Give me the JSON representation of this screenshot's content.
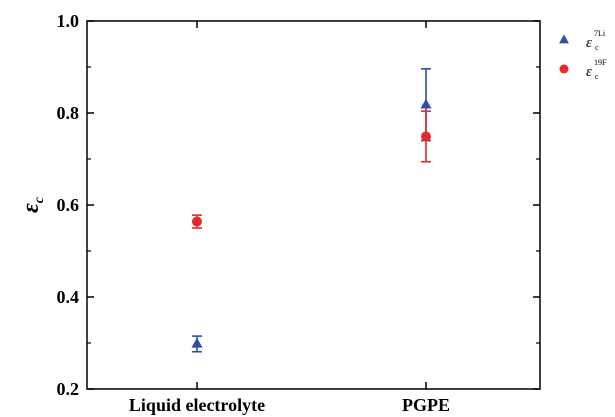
{
  "chart_data": {
    "type": "scatter",
    "categories": [
      "Liquid electrolyte",
      "PGPE"
    ],
    "ylim": [
      0.2,
      1.0
    ],
    "yticks": [
      "0.2",
      "0.4",
      "0.6",
      "0.8",
      "1.0"
    ],
    "ylabel": {
      "main": "ε",
      "sub": "c"
    },
    "legend_position": "top-right",
    "grid": false,
    "series": [
      {
        "name": {
          "main": "ε",
          "sup": "7Li",
          "sub": "c"
        },
        "marker": "triangle",
        "color": "#3050a8",
        "values": [
          0.298,
          0.818
        ],
        "errors": [
          0.017,
          0.078
        ]
      },
      {
        "name": {
          "main": "ε",
          "sup": "19F",
          "sub": "c"
        },
        "marker": "circle",
        "color": "#e8282d",
        "values": [
          0.564,
          0.749
        ],
        "errors": [
          0.014,
          0.055
        ]
      }
    ]
  }
}
